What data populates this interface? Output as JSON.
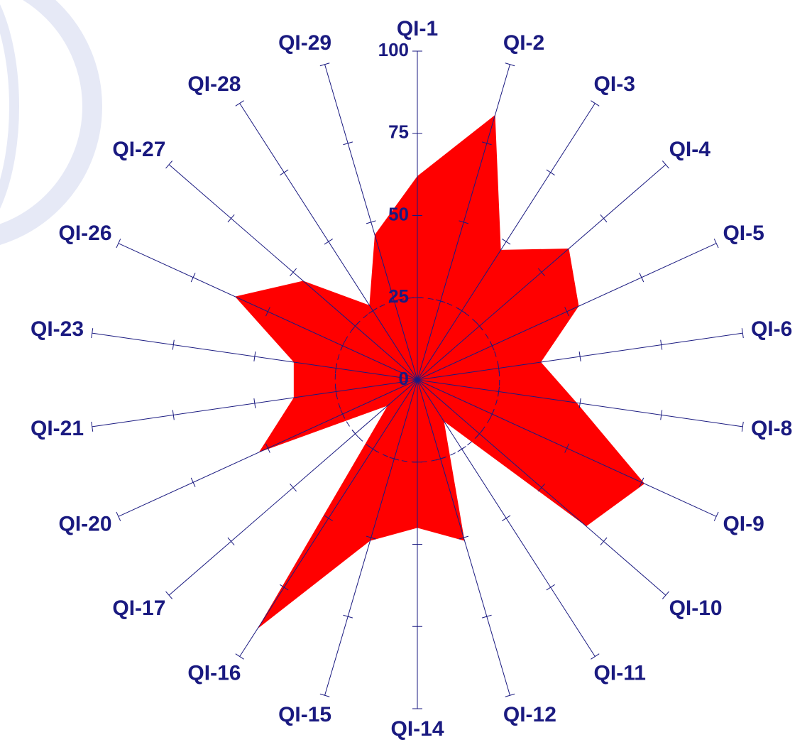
{
  "chart_data": {
    "type": "radar",
    "categories": [
      "QI-1",
      "QI-2",
      "QI-3",
      "QI-4",
      "QI-5",
      "QI-6",
      "QI-8",
      "QI-9",
      "QI-10",
      "QI-11",
      "QI-12",
      "QI-14",
      "QI-15",
      "QI-16",
      "QI-17",
      "QI-20",
      "QI-21",
      "QI-23",
      "QI-26",
      "QI-27",
      "QI-28",
      "QI-29"
    ],
    "values": [
      62,
      84,
      47,
      61,
      54,
      38,
      49,
      76,
      68,
      15,
      51,
      45,
      51,
      90,
      12,
      53,
      38,
      38,
      61,
      46,
      27,
      46
    ],
    "color": "#ff0000",
    "axis_color": "#1a1a80",
    "rlim": [
      0,
      100
    ],
    "rticks": [
      0,
      25,
      50,
      75,
      100
    ]
  }
}
